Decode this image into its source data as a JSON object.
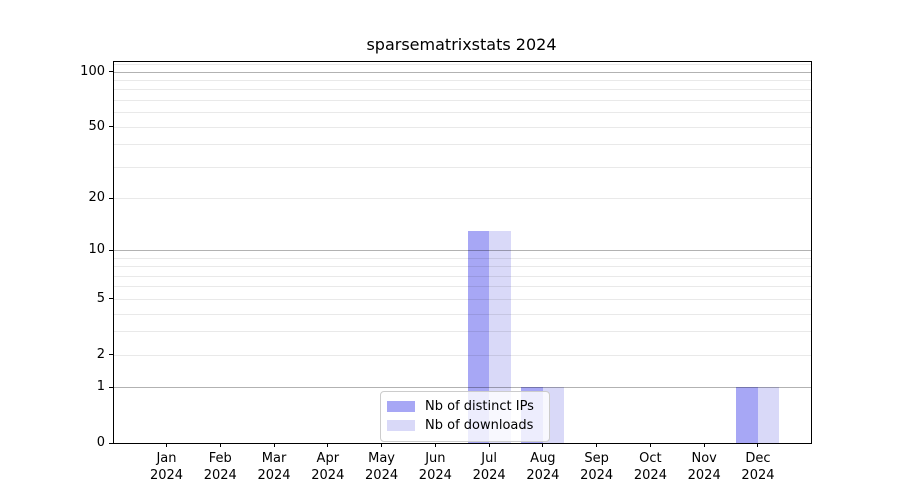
{
  "chart_data": {
    "type": "bar",
    "title": "sparsematrixstats 2024",
    "xlabel": "",
    "ylabel": "",
    "year": "2024",
    "categories": [
      "Jan",
      "Feb",
      "Mar",
      "Apr",
      "May",
      "Jun",
      "Jul",
      "Aug",
      "Sep",
      "Oct",
      "Nov",
      "Dec"
    ],
    "series": [
      {
        "name": "Nb of distinct IPs",
        "color": "#a7a7f5",
        "values": [
          0,
          0,
          0,
          0,
          0,
          0,
          13,
          1,
          0,
          0,
          0,
          1
        ]
      },
      {
        "name": "Nb of downloads",
        "color": "#d9d9f8",
        "values": [
          0,
          0,
          0,
          0,
          0,
          0,
          13,
          1,
          0,
          0,
          0,
          1
        ]
      }
    ],
    "y_scale": "log10(1+x)",
    "y_ticks": [
      0,
      1,
      2,
      5,
      10,
      20,
      50,
      100
    ],
    "y_tick_labels": [
      "0",
      "1",
      "2",
      "5",
      "10",
      "20",
      "50",
      "100"
    ],
    "y_decade_gridlines": [
      1,
      10,
      100
    ],
    "y_minor_gridlines": [
      3,
      4,
      6,
      7,
      8,
      9,
      30,
      40,
      60,
      70,
      80,
      90,
      110
    ],
    "y_max": 113,
    "grid": true,
    "legend_position": "lower center (inside plot)",
    "frame": "full box",
    "background_color": "#ffffff",
    "axis_color": "#000000"
  }
}
